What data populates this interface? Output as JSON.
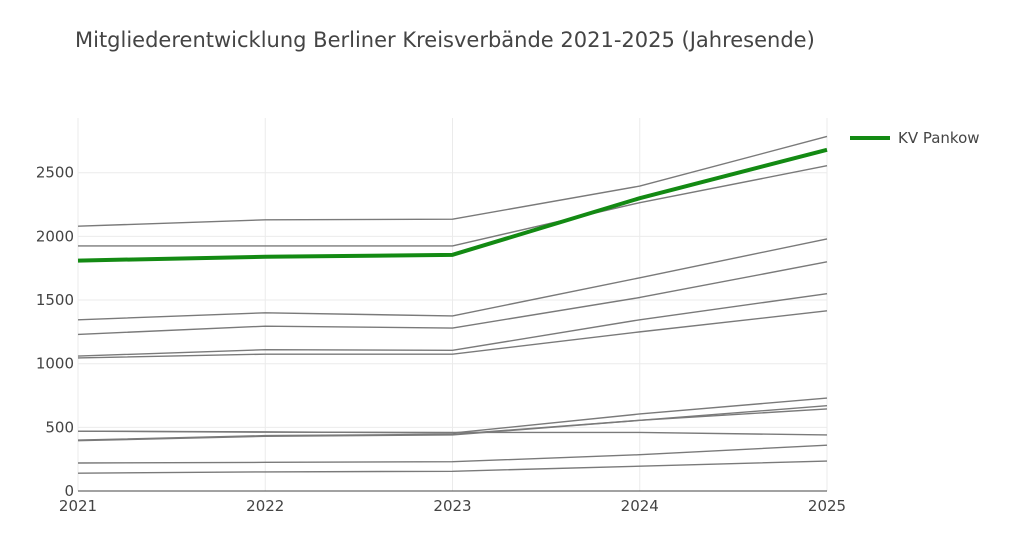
{
  "chart_data": {
    "type": "line",
    "title": "Mitgliederentwicklung Berliner Kreisverbände 2021-2025 (Jahresende)",
    "xlabel": "",
    "ylabel": "",
    "x": [
      2021,
      2022,
      2023,
      2024,
      2025
    ],
    "x_ticks": [
      "2021",
      "2022",
      "2023",
      "2024",
      "2025"
    ],
    "y_ticks": [
      "0",
      "500",
      "1000",
      "1500",
      "2000",
      "2500"
    ],
    "y_tick_values": [
      0,
      500,
      1000,
      1500,
      2000,
      2500
    ],
    "ylim": [
      0,
      2930
    ],
    "grid": true,
    "legend_position": "top-right",
    "highlight_color": "#138a13",
    "other_color": "#7a7a7a",
    "series": [
      {
        "name": "",
        "values": [
          2080,
          2130,
          2135,
          2395,
          2785
        ]
      },
      {
        "name": "",
        "values": [
          1925,
          1925,
          1925,
          2265,
          2555
        ]
      },
      {
        "name": "",
        "values": [
          1345,
          1400,
          1375,
          1675,
          1980
        ]
      },
      {
        "name": "",
        "values": [
          1230,
          1295,
          1280,
          1520,
          1800
        ]
      },
      {
        "name": "",
        "values": [
          1060,
          1110,
          1105,
          1345,
          1550
        ]
      },
      {
        "name": "",
        "values": [
          1045,
          1075,
          1075,
          1250,
          1415
        ]
      },
      {
        "name": "",
        "values": [
          470,
          465,
          455,
          605,
          730
        ]
      },
      {
        "name": "",
        "values": [
          400,
          435,
          445,
          555,
          670
        ]
      },
      {
        "name": "",
        "values": [
          395,
          430,
          440,
          555,
          645
        ]
      },
      {
        "name": "",
        "values": [
          470,
          462,
          460,
          460,
          440
        ]
      },
      {
        "name": "",
        "values": [
          220,
          225,
          230,
          285,
          360
        ]
      },
      {
        "name": "",
        "values": [
          140,
          150,
          155,
          195,
          235
        ]
      },
      {
        "name": "KV Pankow",
        "values": [
          1810,
          1840,
          1855,
          2300,
          2680
        ],
        "highlight": true
      }
    ]
  }
}
